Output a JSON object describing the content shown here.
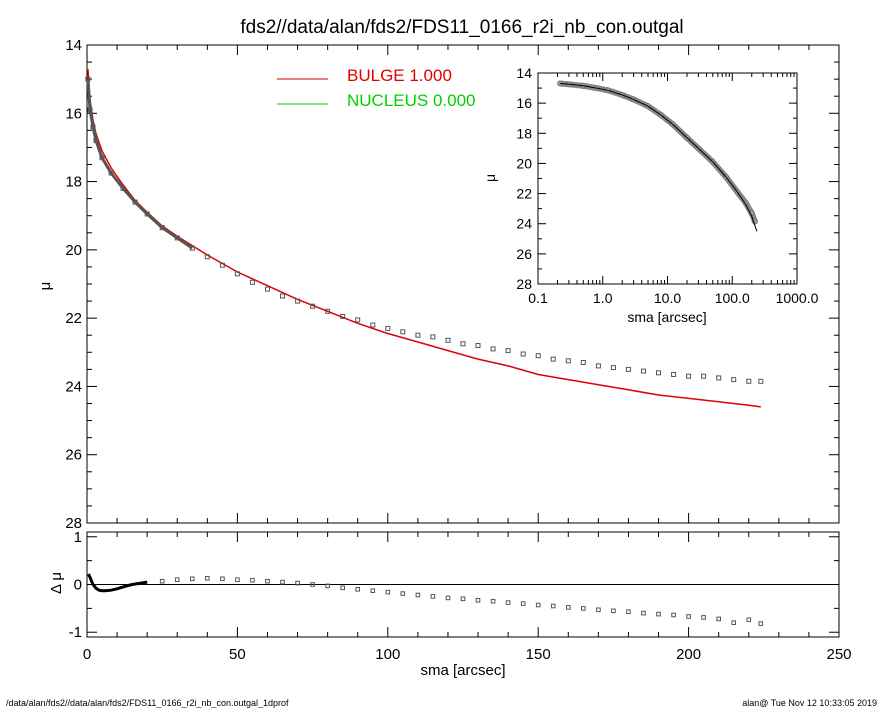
{
  "title": "fds2//data/alan/fds2/FDS11_0166_r2i_nb_con.outgal",
  "footer": {
    "left": "/data/alan/fds2//data/alan/fds2/FDS11_0166_r2i_nb_con.outgal_1dprof",
    "right": "alan@  Tue Nov 12 10:33:05 2019"
  },
  "colors": {
    "bulge": "#e00000",
    "nucleus": "#00d000",
    "data_points": "#555555",
    "axes": "#000000"
  },
  "chart_data": [
    {
      "id": "main",
      "type": "line+scatter",
      "xlabel": "",
      "ylabel": "μ",
      "xlim": [
        0,
        250
      ],
      "ylim": [
        28,
        14
      ],
      "y_inverted": true,
      "yticks": [
        "14",
        "16",
        "18",
        "20",
        "22",
        "24",
        "26",
        "28"
      ],
      "xticks": [],
      "legend": [
        {
          "label": "BULGE  1.000",
          "color": "#e00000"
        },
        {
          "label": "NUCLEUS  0.000",
          "color": "#00d000"
        }
      ],
      "legend_position": "top-center",
      "series": [
        {
          "name": "BULGE  1.000",
          "type": "line",
          "x": [
            0.3,
            1,
            2,
            3,
            5,
            8,
            12,
            16,
            20,
            25,
            30,
            40,
            50,
            60,
            70,
            80,
            90,
            100,
            110,
            120,
            130,
            140,
            150,
            160,
            170,
            180,
            190,
            200,
            210,
            220,
            224
          ],
          "y": [
            14.7,
            15.6,
            16.2,
            16.6,
            17.1,
            17.6,
            18.1,
            18.55,
            18.9,
            19.3,
            19.6,
            20.15,
            20.65,
            21.05,
            21.45,
            21.8,
            22.15,
            22.45,
            22.7,
            22.95,
            23.2,
            23.4,
            23.65,
            23.8,
            23.95,
            24.1,
            24.25,
            24.35,
            24.45,
            24.55,
            24.6
          ]
        },
        {
          "name": "",
          "type": "scatter",
          "x": [
            0.3,
            1,
            2,
            3,
            5,
            8,
            12,
            16,
            20,
            25,
            30,
            35,
            40,
            45,
            50,
            55,
            60,
            65,
            70,
            75,
            80,
            85,
            90,
            95,
            100,
            105,
            110,
            115,
            120,
            125,
            130,
            135,
            140,
            145,
            150,
            155,
            160,
            165,
            170,
            175,
            180,
            185,
            190,
            195,
            200,
            205,
            210,
            215,
            220,
            224
          ],
          "y": [
            15.0,
            15.9,
            16.4,
            16.8,
            17.3,
            17.75,
            18.2,
            18.6,
            18.95,
            19.35,
            19.65,
            19.95,
            20.2,
            20.45,
            20.7,
            20.95,
            21.15,
            21.35,
            21.5,
            21.65,
            21.8,
            21.95,
            22.05,
            22.2,
            22.3,
            22.4,
            22.5,
            22.55,
            22.65,
            22.75,
            22.8,
            22.9,
            22.95,
            23.05,
            23.1,
            23.2,
            23.25,
            23.3,
            23.4,
            23.45,
            23.5,
            23.55,
            23.6,
            23.65,
            23.7,
            23.7,
            23.75,
            23.8,
            23.85,
            23.85
          ]
        }
      ]
    },
    {
      "id": "residual",
      "type": "scatter",
      "xlabel": "sma [arcsec]",
      "ylabel": "Δ μ",
      "xlim": [
        0,
        250
      ],
      "ylim": [
        -1.1,
        1.1
      ],
      "xticks": [
        "0",
        "50",
        "100",
        "150",
        "200",
        "250"
      ],
      "yticks": [
        "1",
        "0",
        "-1"
      ],
      "zero_line": true,
      "series": [
        {
          "name": "",
          "x": [
            0.5,
            1,
            2,
            3,
            4,
            5,
            6,
            8,
            10,
            12,
            15,
            18,
            20,
            25,
            30,
            35,
            40,
            45,
            50,
            55,
            60,
            65,
            70,
            75,
            80,
            85,
            90,
            95,
            100,
            105,
            110,
            115,
            120,
            125,
            130,
            135,
            140,
            145,
            150,
            155,
            160,
            165,
            170,
            175,
            180,
            185,
            190,
            195,
            200,
            205,
            210,
            215,
            220,
            224
          ],
          "y": [
            0.22,
            0.15,
            0.0,
            -0.08,
            -0.12,
            -0.13,
            -0.13,
            -0.12,
            -0.09,
            -0.05,
            0.0,
            0.03,
            0.05,
            0.07,
            0.1,
            0.12,
            0.13,
            0.12,
            0.1,
            0.09,
            0.07,
            0.05,
            0.03,
            0.0,
            -0.03,
            -0.07,
            -0.1,
            -0.13,
            -0.16,
            -0.19,
            -0.22,
            -0.25,
            -0.28,
            -0.3,
            -0.33,
            -0.35,
            -0.38,
            -0.4,
            -0.43,
            -0.45,
            -0.48,
            -0.5,
            -0.53,
            -0.55,
            -0.57,
            -0.6,
            -0.62,
            -0.64,
            -0.67,
            -0.69,
            -0.72,
            -0.8,
            -0.74,
            -0.82
          ]
        }
      ]
    },
    {
      "id": "inset",
      "type": "line+scatter",
      "xlabel": "sma [arcsec]",
      "ylabel": "μ",
      "x_log": true,
      "xlim": [
        0.1,
        1000
      ],
      "ylim": [
        28,
        14
      ],
      "y_inverted": true,
      "xticks": [
        "0.1",
        "1.0",
        "10.0",
        "100.0",
        "1000.0"
      ],
      "yticks": [
        "14",
        "16",
        "18",
        "20",
        "22",
        "24",
        "26",
        "28"
      ],
      "series": [
        {
          "name": "",
          "type": "line",
          "x": [
            0.22,
            0.3,
            0.5,
            0.8,
            1.2,
            2,
            3,
            5,
            8,
            12,
            20,
            30,
            50,
            80,
            120,
            160,
            200,
            240
          ],
          "y": [
            14.7,
            14.75,
            14.85,
            15.0,
            15.15,
            15.45,
            15.75,
            16.2,
            16.8,
            17.4,
            18.3,
            19.0,
            19.9,
            20.9,
            21.9,
            22.7,
            23.5,
            24.5
          ]
        },
        {
          "name": "",
          "type": "scatter",
          "x": [
            0.22,
            0.3,
            0.5,
            0.8,
            1.2,
            2,
            3,
            5,
            8,
            12,
            20,
            30,
            50,
            80,
            120,
            160,
            200,
            224
          ],
          "y": [
            14.7,
            14.75,
            14.85,
            15.0,
            15.15,
            15.45,
            15.75,
            16.2,
            16.8,
            17.4,
            18.3,
            19.0,
            19.9,
            20.9,
            21.9,
            22.6,
            23.3,
            23.85
          ]
        }
      ]
    }
  ]
}
